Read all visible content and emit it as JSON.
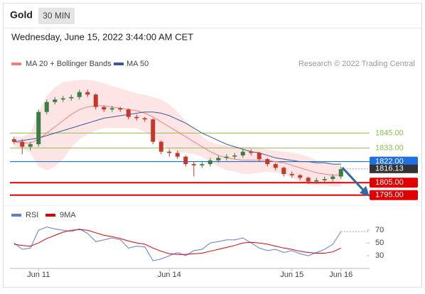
{
  "header": {
    "title": "Gold",
    "timeframe": "30 MIN",
    "date": "Wednesday, June 15, 2022 3:44:00 AM CET"
  },
  "chart_data": [
    {
      "type": "candlestick",
      "source": "Research © 2022 Trading Central",
      "ylim": [
        1788,
        1895
      ],
      "up_color": "#3a7d44",
      "down_color": "#c0392b",
      "open": [
        1840,
        1838,
        1834,
        1836,
        1862,
        1870,
        1872,
        1873,
        1874,
        1878,
        1876,
        1866,
        1864,
        1865,
        1864,
        1858,
        1857,
        1856,
        1838,
        1830,
        1829,
        1826,
        1820,
        1819,
        1820,
        1823,
        1825,
        1826,
        1827,
        1830,
        1829,
        1824,
        1820,
        1817,
        1812,
        1811,
        1809,
        1806,
        1807,
        1808,
        1810
      ],
      "high": [
        1842,
        1840,
        1838,
        1864,
        1872,
        1874,
        1875,
        1876,
        1880,
        1880,
        1877,
        1867,
        1867,
        1866,
        1865,
        1860,
        1858,
        1857,
        1839,
        1832,
        1831,
        1827,
        1822,
        1822,
        1825,
        1827,
        1828,
        1829,
        1832,
        1832,
        1830,
        1825,
        1821,
        1818,
        1814,
        1812,
        1810,
        1809,
        1810,
        1812,
        1818
      ],
      "low": [
        1836,
        1828,
        1831,
        1834,
        1860,
        1868,
        1870,
        1871,
        1872,
        1874,
        1864,
        1862,
        1862,
        1862,
        1856,
        1855,
        1854,
        1836,
        1828,
        1826,
        1824,
        1818,
        1810,
        1817,
        1818,
        1821,
        1823,
        1824,
        1825,
        1827,
        1822,
        1818,
        1815,
        1810,
        1809,
        1807,
        1804,
        1804,
        1805,
        1806,
        1808
      ],
      "close": [
        1838,
        1834,
        1836,
        1862,
        1870,
        1872,
        1873,
        1874,
        1878,
        1876,
        1866,
        1864,
        1865,
        1864,
        1858,
        1857,
        1856,
        1838,
        1830,
        1829,
        1826,
        1820,
        1819,
        1820,
        1823,
        1825,
        1826,
        1827,
        1830,
        1829,
        1824,
        1820,
        1817,
        1812,
        1811,
        1809,
        1806,
        1807,
        1808,
        1810,
        1816
      ],
      "bollinger": {
        "name": "MA 20 + Bollinger Bands",
        "color": "#f08080",
        "band_color": "#fde0e0",
        "ma": [
          1838,
          1837,
          1837,
          1840,
          1845,
          1850,
          1855,
          1860,
          1864,
          1866,
          1867,
          1867,
          1866,
          1865,
          1864,
          1863,
          1861,
          1858,
          1854,
          1850,
          1846,
          1842,
          1838,
          1834,
          1830,
          1827,
          1825,
          1824,
          1823,
          1823,
          1823,
          1823,
          1822,
          1821,
          1819,
          1817,
          1815,
          1813,
          1812,
          1811,
          1811
        ],
        "upper": [
          1842,
          1842,
          1845,
          1862,
          1875,
          1882,
          1886,
          1887,
          1888,
          1888,
          1887,
          1885,
          1883,
          1881,
          1879,
          1877,
          1876,
          1874,
          1872,
          1868,
          1862,
          1855,
          1848,
          1842,
          1838,
          1836,
          1835,
          1834,
          1834,
          1834,
          1833,
          1832,
          1831,
          1830,
          1829,
          1828,
          1826,
          1823,
          1821,
          1820,
          1820
        ],
        "lower": [
          1834,
          1832,
          1829,
          1818,
          1815,
          1818,
          1824,
          1833,
          1840,
          1844,
          1847,
          1849,
          1849,
          1849,
          1849,
          1849,
          1846,
          1842,
          1836,
          1832,
          1830,
          1829,
          1828,
          1826,
          1822,
          1818,
          1815,
          1814,
          1812,
          1812,
          1813,
          1814,
          1813,
          1812,
          1809,
          1806,
          1804,
          1803,
          1803,
          1802,
          1802
        ]
      },
      "series": [
        {
          "name": "MA 50",
          "color": "#3b5998",
          "values": [
            1838,
            1839,
            1840,
            1841,
            1843,
            1845,
            1847,
            1849,
            1851,
            1853,
            1855,
            1857,
            1858,
            1859,
            1860,
            1861,
            1862,
            1862,
            1861,
            1859,
            1856,
            1853,
            1849,
            1845,
            1842,
            1839,
            1836,
            1834,
            1832,
            1830,
            1829,
            1827,
            1825,
            1824,
            1823,
            1822,
            1822,
            1821,
            1821,
            1820,
            1820
          ]
        }
      ],
      "levels": [
        {
          "value": 1845,
          "label": "1845.00",
          "color": "#8bc34a",
          "boxed": false
        },
        {
          "value": 1833,
          "label": "1833.00",
          "color": "#8bc34a",
          "boxed": false
        },
        {
          "value": 1822,
          "label": "1822.00",
          "color": "#1e6fe0",
          "boxed": true
        },
        {
          "value": 1805,
          "label": "1805.00",
          "color": "#e00000",
          "boxed": true
        },
        {
          "value": 1795,
          "label": "1795.00",
          "color": "#e00000",
          "boxed": true
        }
      ],
      "last_price": {
        "value": 1816.13,
        "label": "1816.13",
        "color": "#333333"
      }
    },
    {
      "type": "line",
      "ylim": [
        10,
        97
      ],
      "yticks": [
        30,
        50,
        70
      ],
      "categories": [
        null,
        null,
        null,
        "Jun 11",
        null,
        null,
        null,
        null,
        null,
        null,
        null,
        null,
        null,
        null,
        null,
        null,
        null,
        null,
        null,
        "Jun 14",
        null,
        null,
        null,
        null,
        null,
        null,
        null,
        null,
        null,
        null,
        null,
        null,
        null,
        null,
        "Jun 15",
        null,
        null,
        null,
        null,
        null,
        "Jun 16"
      ],
      "series": [
        {
          "name": "RSI",
          "color": "#5b7fd6",
          "values": [
            50,
            40,
            42,
            70,
            75,
            72,
            70,
            68,
            72,
            65,
            52,
            55,
            58,
            55,
            42,
            45,
            44,
            22,
            25,
            30,
            35,
            30,
            38,
            40,
            50,
            52,
            55,
            55,
            58,
            50,
            42,
            38,
            40,
            35,
            38,
            33,
            30,
            35,
            40,
            48,
            68
          ]
        },
        {
          "name": "9MA",
          "color": "#e00000",
          "values": [
            48,
            46,
            45,
            50,
            57,
            62,
            67,
            70,
            71,
            70,
            66,
            62,
            60,
            57,
            53,
            50,
            48,
            42,
            37,
            33,
            32,
            32,
            33,
            34,
            37,
            40,
            43,
            46,
            50,
            51,
            50,
            48,
            45,
            42,
            40,
            37,
            35,
            34,
            34,
            36,
            42
          ]
        }
      ]
    }
  ]
}
